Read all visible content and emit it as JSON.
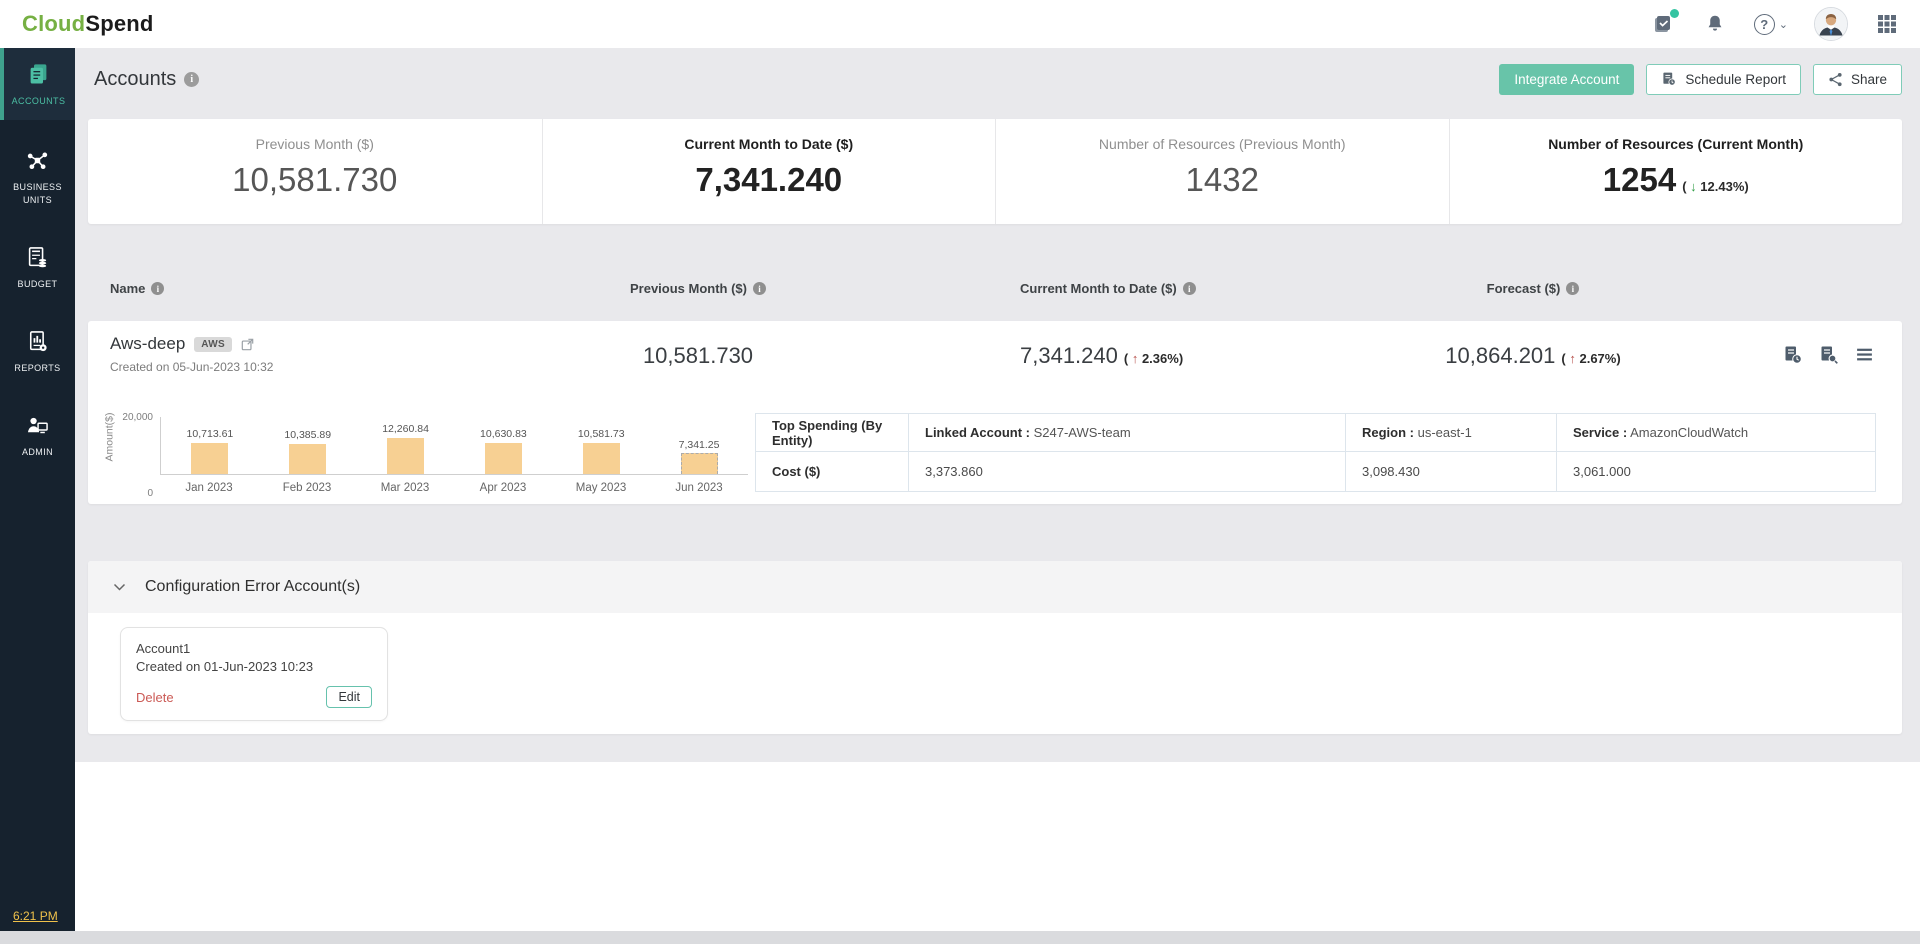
{
  "topbar": {
    "logo_part1": "Cloud",
    "logo_part2": "Spend",
    "icon_names": [
      "feedback-icon",
      "notifications-bell-icon",
      "help-icon",
      "user-avatar",
      "apps-grid-icon"
    ],
    "help_glyph": "?"
  },
  "sidebar": {
    "items": [
      {
        "label": "ACCOUNTS",
        "active": true
      },
      {
        "label": "BUSINESS UNITS",
        "active": false
      },
      {
        "label": "BUDGET",
        "active": false
      },
      {
        "label": "REPORTS",
        "active": false
      },
      {
        "label": "ADMIN",
        "active": false
      }
    ],
    "time": "6:21 PM"
  },
  "header": {
    "title": "Accounts",
    "integrate_label": "Integrate Account",
    "schedule_label": "Schedule Report",
    "share_label": "Share"
  },
  "summary": {
    "cards": [
      {
        "label": "Previous Month ($)",
        "value": "10,581.730"
      },
      {
        "label": "Current Month to Date ($)",
        "value": "7,341.240"
      },
      {
        "label": "Number of Resources (Previous Month)",
        "value": "1432"
      },
      {
        "label": "Number of Resources (Current Month)",
        "value": "1254",
        "arrow": "↓",
        "delta": "12.43%"
      }
    ]
  },
  "list_headers": [
    "Name",
    "Previous Month ($)",
    "Current Month to Date ($)",
    "Forecast ($)"
  ],
  "account": {
    "name": "Aws-deep",
    "badge": "AWS",
    "created": "Created on 05-Jun-2023 10:32",
    "previous_month": "10,581.730",
    "current_month": "7,341.240",
    "current_arrow": "↑",
    "current_delta": "2.36%",
    "forecast": "10,864.201",
    "forecast_arrow": "↑",
    "forecast_delta": "2.67%",
    "action_icons": [
      "report-clock-icon",
      "report-search-icon",
      "menu-icon"
    ]
  },
  "chart_data": {
    "type": "bar",
    "categories": [
      "Jan 2023",
      "Feb 2023",
      "Mar 2023",
      "Apr 2023",
      "May 2023",
      "Jun 2023"
    ],
    "values": [
      10713.61,
      10385.89,
      12260.84,
      10630.83,
      10581.73,
      7341.25
    ],
    "labels": [
      "10,713.61",
      "10,385.89",
      "12,260.84",
      "10,630.83",
      "10,581.73",
      "7,341.25"
    ],
    "title": "",
    "xlabel": "",
    "ylabel": "Amount($)",
    "ylim": [
      0,
      20000
    ],
    "yticks": [
      "20,000",
      "0"
    ],
    "bar_color": "#f7d093",
    "last_bar_dashed": true,
    "grid": false,
    "legend": false
  },
  "spending": {
    "header_label": "Top Spending  (By Entity)",
    "cost_label": "Cost ($)",
    "columns": [
      {
        "key": "Linked Account :",
        "value": "S247-AWS-team",
        "cost": "3,373.860"
      },
      {
        "key": "Region :",
        "value": "us-east-1",
        "cost": "3,098.430"
      },
      {
        "key": "Service :",
        "value": "AmazonCloudWatch",
        "cost": "3,061.000"
      }
    ]
  },
  "config_section": {
    "title": "Configuration Error Account(s)",
    "card": {
      "name": "Account1",
      "created": "Created on 01-Jun-2023 10:23",
      "delete_label": "Delete",
      "edit_label": "Edit"
    }
  },
  "colors": {
    "accent_teal": "#68c4a9",
    "sidebar_bg": "#16222e",
    "page_bg": "#e9e9ec",
    "bar_fill": "#f7d093",
    "delta_up_red": "#b8534e",
    "delta_down_green": "#2f9e44",
    "logo_green": "#76b043",
    "time_yellow": "#f0c24b",
    "delete_red": "#cb5a55"
  }
}
